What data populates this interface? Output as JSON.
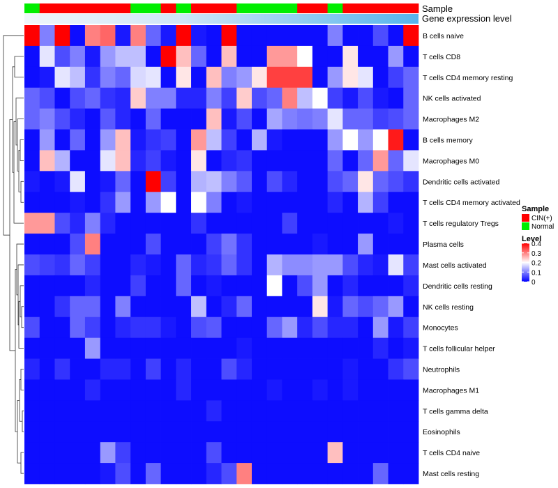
{
  "chart_data": {
    "type": "heatmap",
    "title": "",
    "annotation_rows": [
      "Sample",
      "Gene expression level"
    ],
    "columns_sample_group": [
      "N",
      "C",
      "C",
      "C",
      "C",
      "C",
      "C",
      "N",
      "N",
      "C",
      "N",
      "C",
      "C",
      "C",
      "N",
      "N",
      "N",
      "N",
      "C",
      "C",
      "N",
      "C",
      "C",
      "C",
      "C",
      "C"
    ],
    "legend_sample": {
      "title": "Sample",
      "entries": [
        {
          "label": "CIN(+)",
          "color": "#ff0000"
        },
        {
          "label": "Normal",
          "color": "#00ee00"
        }
      ]
    },
    "legend_level": {
      "title": "Level",
      "ticks": [
        0.4,
        0.3,
        0.2,
        0.1,
        0
      ],
      "range": [
        0,
        0.4
      ],
      "colors": {
        "low": "#0000ff",
        "mid": "#ffffff",
        "high": "#ff0000"
      }
    },
    "rows": [
      "B cells naive",
      "T cells CD8",
      "T cells CD4 memory resting",
      "NK cells activated",
      "Macrophages M2",
      "B cells memory",
      "Macrophages M0",
      "Dendritic cells activated",
      "T cells CD4 memory activated",
      "T cells regulatory  Tregs",
      "Plasma cells",
      "Mast cells activated",
      "Dendritic cells resting",
      "NK cells resting",
      "Monocytes",
      "T cells follicular helper",
      "Neutrophils",
      "Macrophages M1",
      "T cells gamma delta",
      "Eosinophils",
      "T cells CD4 naive",
      "Mast cells resting"
    ],
    "values": [
      [
        0.4,
        0.1,
        0.4,
        0.01,
        0.3,
        0.32,
        0.02,
        0.3,
        0.08,
        0.02,
        0.4,
        0.02,
        0.01,
        0.4,
        0.01,
        0.01,
        0.01,
        0.01,
        0.01,
        0.01,
        0.1,
        0.01,
        0.01,
        0.06,
        0.01,
        0.4
      ],
      [
        0.01,
        0.18,
        0.06,
        0.1,
        0.02,
        0.12,
        0.15,
        0.15,
        0.01,
        0.4,
        0.25,
        0.08,
        0.01,
        0.25,
        0.01,
        0.01,
        0.28,
        0.28,
        0.2,
        0.01,
        0.01,
        0.22,
        0.01,
        0.01,
        0.12,
        0.01
      ],
      [
        0.01,
        0.02,
        0.18,
        0.15,
        0.04,
        0.1,
        0.08,
        0.17,
        0.18,
        0.01,
        0.22,
        0.01,
        0.25,
        0.1,
        0.12,
        0.22,
        0.35,
        0.35,
        0.35,
        0.01,
        0.12,
        0.22,
        0.18,
        0.01,
        0.05,
        0.08
      ],
      [
        0.08,
        0.06,
        0.01,
        0.06,
        0.08,
        0.04,
        0.03,
        0.24,
        0.1,
        0.1,
        0.03,
        0.03,
        0.1,
        0.05,
        0.24,
        0.06,
        0.08,
        0.3,
        0.15,
        0.2,
        0.05,
        0.02,
        0.06,
        0.02,
        0.01,
        0.08
      ],
      [
        0.08,
        0.1,
        0.06,
        0.03,
        0.01,
        0.07,
        0.03,
        0.01,
        0.08,
        0.01,
        0.01,
        0.01,
        0.25,
        0.02,
        0.06,
        0.01,
        0.13,
        0.1,
        0.09,
        0.1,
        0.18,
        0.08,
        0.08,
        0.05,
        0.06,
        0.08
      ],
      [
        0.01,
        0.12,
        0.01,
        0.08,
        0.01,
        0.12,
        0.25,
        0.02,
        0.04,
        0.05,
        0.01,
        0.28,
        0.15,
        0.05,
        0.01,
        0.14,
        0.02,
        0.01,
        0.01,
        0.01,
        0.12,
        0.2,
        0.12,
        0.2,
        0.38,
        0.01
      ],
      [
        0.01,
        0.25,
        0.14,
        0.01,
        0.01,
        0.18,
        0.25,
        0.03,
        0.05,
        0.02,
        0.01,
        0.22,
        0.01,
        0.03,
        0.04,
        0.01,
        0.01,
        0.01,
        0.01,
        0.01,
        0.08,
        0.01,
        0.08,
        0.28,
        0.08,
        0.18
      ],
      [
        0.02,
        0.01,
        0.02,
        0.18,
        0.01,
        0.02,
        0.08,
        0.01,
        0.4,
        0.05,
        0.01,
        0.14,
        0.15,
        0.1,
        0.07,
        0.01,
        0.06,
        0.03,
        0.01,
        0.01,
        0.06,
        0.08,
        0.22,
        0.08,
        0.06,
        0.04
      ],
      [
        0.01,
        0.01,
        0.01,
        0.02,
        0.01,
        0.04,
        0.12,
        0.01,
        0.12,
        0.2,
        0.01,
        0.2,
        0.1,
        0.01,
        0.02,
        0.01,
        0.01,
        0.01,
        0.01,
        0.01,
        0.03,
        0.01,
        0.14,
        0.05,
        0.01,
        0.01
      ],
      [
        0.28,
        0.28,
        0.06,
        0.03,
        0.1,
        0.03,
        0.01,
        0.01,
        0.01,
        0.01,
        0.01,
        0.04,
        0.01,
        0.01,
        0.01,
        0.01,
        0.01,
        0.05,
        0.01,
        0.01,
        0.01,
        0.01,
        0.01,
        0.01,
        0.02,
        0.01
      ],
      [
        0.01,
        0.01,
        0.01,
        0.06,
        0.3,
        0.01,
        0.01,
        0.01,
        0.06,
        0.01,
        0.01,
        0.01,
        0.05,
        0.09,
        0.04,
        0.01,
        0.01,
        0.01,
        0.01,
        0.02,
        0.01,
        0.01,
        0.12,
        0.01,
        0.01,
        0.01
      ],
      [
        0.06,
        0.05,
        0.04,
        0.08,
        0.05,
        0.01,
        0.01,
        0.03,
        0.02,
        0.01,
        0.08,
        0.03,
        0.04,
        0.08,
        0.04,
        0.01,
        0.14,
        0.11,
        0.11,
        0.12,
        0.12,
        0.06,
        0.03,
        0.02,
        0.18,
        0.05
      ],
      [
        0.01,
        0.01,
        0.01,
        0.01,
        0.03,
        0.01,
        0.01,
        0.05,
        0.01,
        0.01,
        0.08,
        0.01,
        0.02,
        0.01,
        0.01,
        0.01,
        0.2,
        0.01,
        0.06,
        0.12,
        0.01,
        0.03,
        0.01,
        0.01,
        0.01,
        0.03
      ],
      [
        0.01,
        0.01,
        0.04,
        0.08,
        0.08,
        0.01,
        0.1,
        0.01,
        0.01,
        0.01,
        0.01,
        0.15,
        0.01,
        0.03,
        0.08,
        0.01,
        0.01,
        0.01,
        0.01,
        0.22,
        0.02,
        0.08,
        0.06,
        0.08,
        0.12,
        0.01
      ],
      [
        0.06,
        0.01,
        0.01,
        0.08,
        0.05,
        0.01,
        0.03,
        0.04,
        0.04,
        0.02,
        0.01,
        0.06,
        0.07,
        0.01,
        0.01,
        0.01,
        0.08,
        0.12,
        0.03,
        0.06,
        0.03,
        0.03,
        0.01,
        0.12,
        0.02,
        0.05
      ],
      [
        0.01,
        0.01,
        0.01,
        0.01,
        0.12,
        0.01,
        0.01,
        0.01,
        0.01,
        0.01,
        0.01,
        0.01,
        0.01,
        0.01,
        0.02,
        0.01,
        0.01,
        0.01,
        0.01,
        0.01,
        0.01,
        0.01,
        0.01,
        0.03,
        0.01,
        0.02
      ],
      [
        0.03,
        0.01,
        0.04,
        0.01,
        0.01,
        0.03,
        0.03,
        0.01,
        0.05,
        0.01,
        0.03,
        0.01,
        0.01,
        0.06,
        0.03,
        0.01,
        0.01,
        0.01,
        0.01,
        0.01,
        0.01,
        0.02,
        0.01,
        0.01,
        0.04,
        0.06
      ],
      [
        0.01,
        0.01,
        0.01,
        0.01,
        0.03,
        0.01,
        0.01,
        0.01,
        0.01,
        0.01,
        0.03,
        0.01,
        0.01,
        0.01,
        0.01,
        0.01,
        0.02,
        0.01,
        0.01,
        0.02,
        0.01,
        0.02,
        0.01,
        0.01,
        0.01,
        0.01
      ],
      [
        0.01,
        0.01,
        0.01,
        0.01,
        0.01,
        0.01,
        0.01,
        0.01,
        0.01,
        0.01,
        0.01,
        0.01,
        0.03,
        0.01,
        0.01,
        0.01,
        0.01,
        0.01,
        0.01,
        0.01,
        0.01,
        0.01,
        0.01,
        0.01,
        0.01,
        0.01
      ],
      [
        0.01,
        0.01,
        0.01,
        0.01,
        0.01,
        0.01,
        0.01,
        0.01,
        0.01,
        0.01,
        0.01,
        0.01,
        0.01,
        0.01,
        0.01,
        0.01,
        0.01,
        0.01,
        0.01,
        0.01,
        0.01,
        0.01,
        0.01,
        0.01,
        0.01,
        0.01
      ],
      [
        0.01,
        0.01,
        0.01,
        0.01,
        0.01,
        0.12,
        0.05,
        0.01,
        0.01,
        0.01,
        0.01,
        0.01,
        0.06,
        0.01,
        0.01,
        0.01,
        0.01,
        0.01,
        0.01,
        0.01,
        0.25,
        0.01,
        0.01,
        0.01,
        0.01,
        0.01
      ],
      [
        0.01,
        0.01,
        0.01,
        0.01,
        0.01,
        0.02,
        0.06,
        0.01,
        0.08,
        0.01,
        0.01,
        0.01,
        0.03,
        0.06,
        0.3,
        0.01,
        0.01,
        0.01,
        0.01,
        0.01,
        0.01,
        0.01,
        0.01,
        0.08,
        0.01,
        0.01
      ]
    ]
  }
}
